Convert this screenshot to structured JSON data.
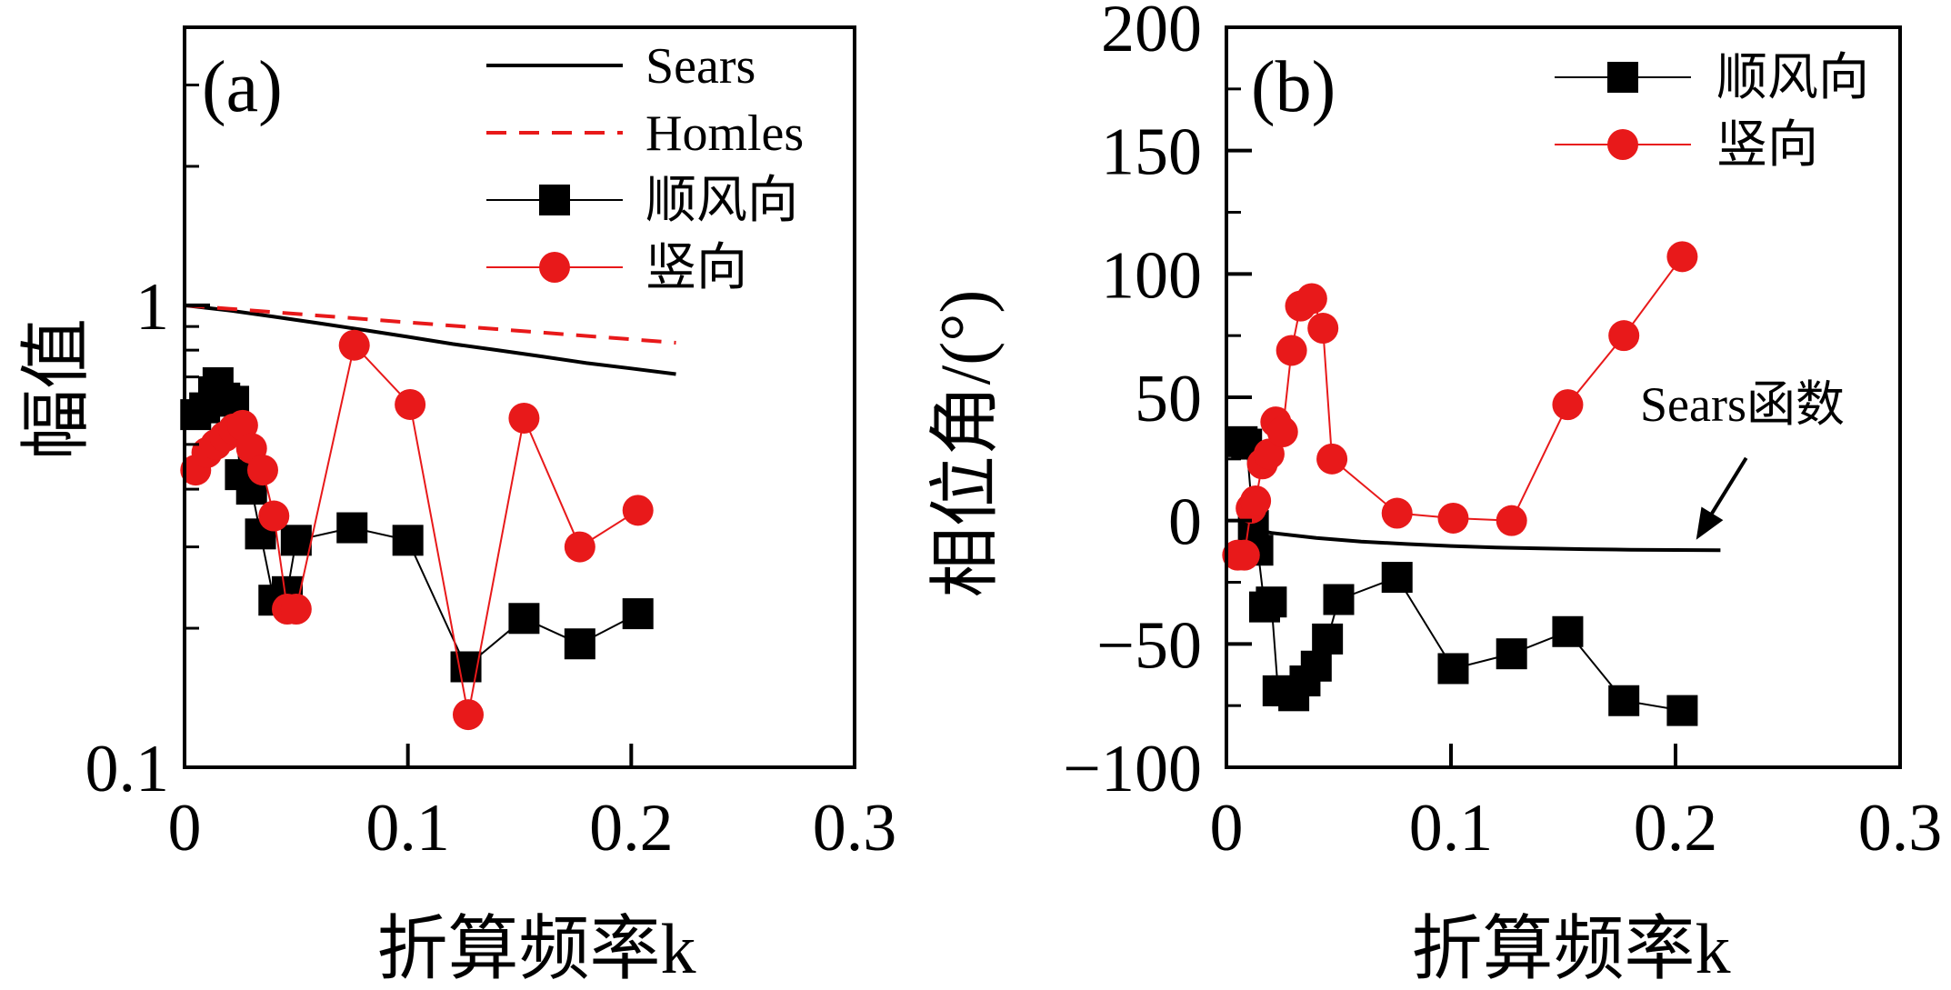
{
  "chart_data": [
    {
      "id": "a",
      "type": "line",
      "panel_label": "(a)",
      "xlabel": "折算频率k",
      "ylabel": "幅值",
      "xscale": "linear",
      "yscale": "log",
      "xlim": [
        0,
        0.3
      ],
      "ylim": [
        0.1,
        4
      ],
      "xticks": [
        0,
        0.1,
        0.2,
        0.3
      ],
      "xtick_labels": [
        "0",
        "0.1",
        "0.2",
        "0.3"
      ],
      "yticks": [
        0.1,
        1
      ],
      "ytick_labels": [
        "0.1",
        "1"
      ],
      "grid": false,
      "legend": "top-right",
      "series": [
        {
          "name": "Sears",
          "style": "line",
          "color": "#000000",
          "x": [
            0,
            0.02,
            0.04,
            0.06,
            0.08,
            0.1,
            0.12,
            0.14,
            0.16,
            0.18,
            0.2,
            0.22
          ],
          "y": [
            1.0,
            0.975,
            0.945,
            0.915,
            0.885,
            0.855,
            0.825,
            0.8,
            0.775,
            0.75,
            0.73,
            0.71
          ]
        },
        {
          "name": "Homles",
          "style": "dashed",
          "color": "#e8191a",
          "x": [
            0,
            0.22
          ],
          "y": [
            1.0,
            0.83
          ]
        },
        {
          "name": "顺风向",
          "style": "line-square",
          "color": "#000000",
          "x": [
            0.005,
            0.009,
            0.013,
            0.015,
            0.018,
            0.022,
            0.025,
            0.03,
            0.034,
            0.04,
            0.046,
            0.05,
            0.075,
            0.1,
            0.126,
            0.152,
            0.177,
            0.203
          ],
          "y": [
            0.58,
            0.6,
            0.65,
            0.68,
            0.63,
            0.62,
            0.43,
            0.4,
            0.32,
            0.23,
            0.24,
            0.31,
            0.33,
            0.31,
            0.165,
            0.21,
            0.185,
            0.215
          ]
        },
        {
          "name": "竖向",
          "style": "line-circle",
          "color": "#e8191a",
          "x": [
            0.005,
            0.01,
            0.014,
            0.018,
            0.022,
            0.026,
            0.03,
            0.035,
            0.04,
            0.046,
            0.05,
            0.076,
            0.101,
            0.127,
            0.152,
            0.177,
            0.203
          ],
          "y": [
            0.44,
            0.48,
            0.5,
            0.52,
            0.54,
            0.55,
            0.49,
            0.44,
            0.35,
            0.22,
            0.22,
            0.82,
            0.61,
            0.13,
            0.57,
            0.3,
            0.36
          ]
        }
      ]
    },
    {
      "id": "b",
      "type": "line",
      "panel_label": "(b)",
      "xlabel": "折算频率k",
      "ylabel": "相位角/(°)",
      "xscale": "linear",
      "yscale": "linear",
      "xlim": [
        0,
        0.3
      ],
      "ylim": [
        -100,
        200
      ],
      "xticks": [
        0,
        0.1,
        0.2,
        0.3
      ],
      "xtick_labels": [
        "0",
        "0.1",
        "0.2",
        "0.3"
      ],
      "yticks": [
        -100,
        -50,
        0,
        50,
        100,
        150,
        200
      ],
      "ytick_labels": [
        "−100",
        "−50",
        "0",
        "50",
        "100",
        "150",
        "200"
      ],
      "grid": false,
      "legend": "top-right",
      "annotation": {
        "text": "Sears函数",
        "arrow_to": [
          0.21,
          -10
        ]
      },
      "series": [
        {
          "name": "Sears函数",
          "style": "line",
          "color": "#000000",
          "in_legend": false,
          "x": [
            0.015,
            0.02,
            0.04,
            0.06,
            0.08,
            0.1,
            0.12,
            0.14,
            0.16,
            0.18,
            0.2,
            0.22
          ],
          "y": [
            -4,
            -5,
            -7,
            -8.5,
            -9.5,
            -10.3,
            -10.9,
            -11.3,
            -11.6,
            -11.8,
            -11.9,
            -12
          ]
        },
        {
          "name": "顺风向",
          "style": "line-square",
          "color": "#000000",
          "x": [
            0.007,
            0.009,
            0.012,
            0.014,
            0.017,
            0.02,
            0.023,
            0.027,
            0.03,
            0.035,
            0.04,
            0.045,
            0.05,
            0.076,
            0.101,
            0.127,
            0.152,
            0.177,
            0.203
          ],
          "y": [
            32,
            31,
            -2,
            -12,
            -35,
            -33,
            -69,
            -69,
            -71,
            -65,
            -59,
            -48,
            -32,
            -23,
            -60,
            -54,
            -45,
            -73,
            -77
          ]
        },
        {
          "name": "竖向",
          "style": "line-circle",
          "color": "#e8191a",
          "x": [
            0.005,
            0.008,
            0.011,
            0.013,
            0.016,
            0.019,
            0.022,
            0.025,
            0.029,
            0.033,
            0.038,
            0.043,
            0.047,
            0.076,
            0.101,
            0.127,
            0.152,
            0.177,
            0.203
          ],
          "y": [
            -14,
            -14,
            5,
            8,
            23,
            27,
            40,
            36,
            69,
            87,
            90,
            78,
            25,
            3,
            1,
            0,
            47,
            75,
            107
          ]
        }
      ]
    }
  ]
}
